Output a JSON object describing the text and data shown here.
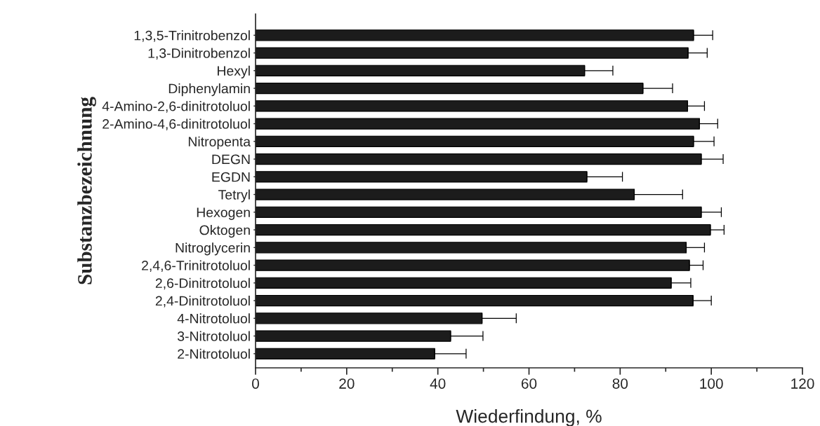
{
  "chart_data": {
    "type": "bar",
    "orientation": "horizontal",
    "xlabel": "Wiederfindung, %",
    "ylabel": "Substanzbezeichnung",
    "categories": [
      "1,3,5-Trinitrobenzol",
      "1,3-Dinitrobenzol",
      "Hexyl",
      "Diphenylamin",
      "4-Amino-2,6-dinitrotoluol",
      "2-Amino-4,6-dinitrotoluol",
      "Nitropenta",
      "DEGN",
      "EGDN",
      "Tetryl",
      "Hexogen",
      "Oktogen",
      "Nitroglycerin",
      "2,4,6-Trinitrotoluol",
      "2,6-Dinitrotoluol",
      "2,4-Dinitrotoluol",
      "4-Nitrotoluol",
      "3-Nitrotoluol",
      "2-Nitrotoluol"
    ],
    "values": [
      96.1,
      94.9,
      72.2,
      85.0,
      94.8,
      97.4,
      96.1,
      97.8,
      72.7,
      83.1,
      97.8,
      99.8,
      94.5,
      95.2,
      91.2,
      96.0,
      49.7,
      42.8,
      39.3
    ],
    "errors": [
      [
        96.1,
        100.3
      ],
      [
        94.9,
        99.1
      ],
      [
        72.2,
        78.4
      ],
      [
        85.0,
        91.5
      ],
      [
        94.8,
        98.5
      ],
      [
        97.4,
        101.4
      ],
      [
        96.1,
        100.6
      ],
      [
        97.8,
        102.6
      ],
      [
        72.7,
        80.5
      ],
      [
        83.1,
        93.7
      ],
      [
        97.8,
        102.2
      ],
      [
        99.8,
        102.8
      ],
      [
        94.5,
        98.5
      ],
      [
        95.2,
        98.2
      ],
      [
        91.2,
        95.5
      ],
      [
        96.0,
        100.0
      ],
      [
        49.7,
        57.2
      ],
      [
        42.8,
        49.9
      ],
      [
        39.3,
        46.2
      ]
    ],
    "color": "#1c1c1c",
    "xlim": [
      0,
      120
    ],
    "xticks": [
      0,
      20,
      40,
      60,
      80,
      100,
      120
    ],
    "grid": false,
    "legend": false
  }
}
